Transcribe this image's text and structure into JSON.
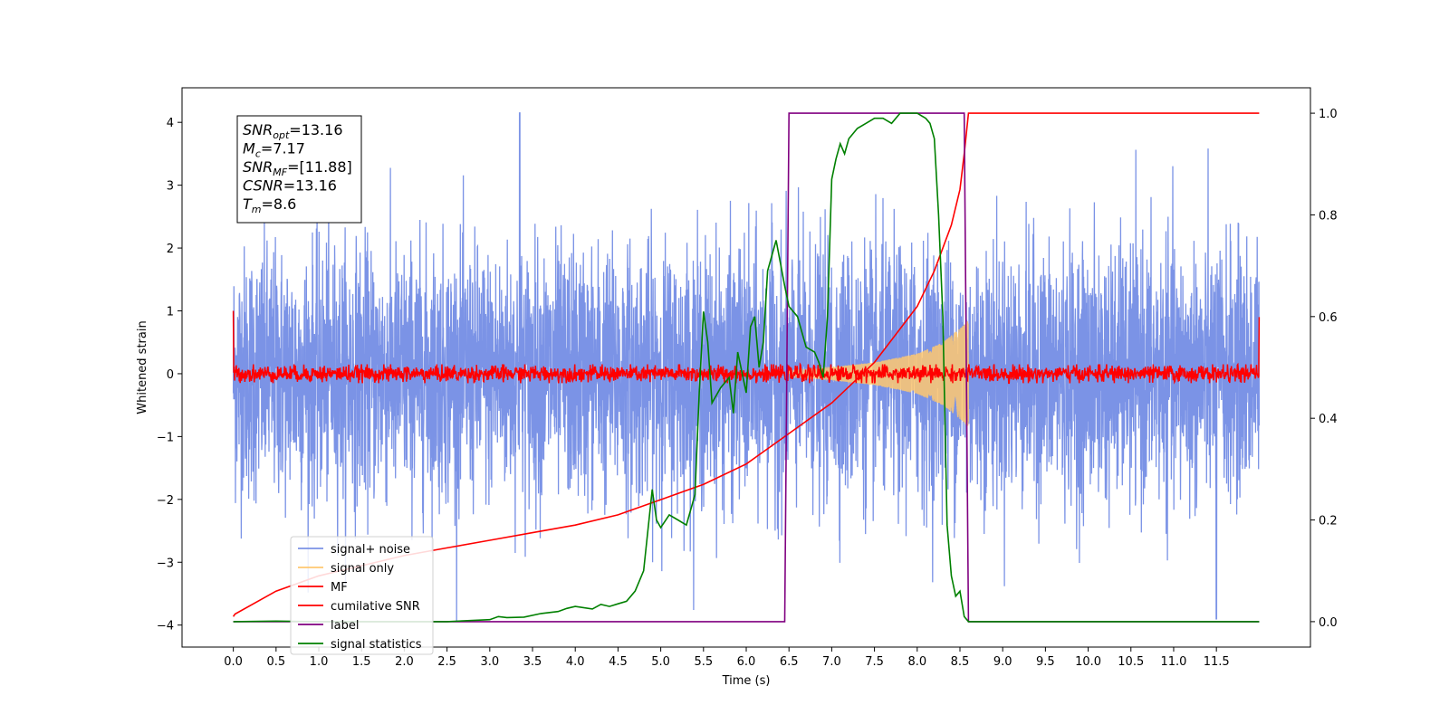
{
  "chart_data": {
    "type": "line",
    "xlabel": "Time (s)",
    "ylabel": "Whitened strain",
    "xlim": [
      -0.6,
      12.6
    ],
    "ylim": [
      -4.35,
      4.55
    ],
    "ylim_right": [
      -0.05,
      1.05
    ],
    "x_ticks": [
      "0.0",
      "0.5",
      "1.0",
      "1.5",
      "2.0",
      "2.5",
      "3.0",
      "3.5",
      "4.0",
      "4.5",
      "5.0",
      "5.5",
      "6.0",
      "6.5",
      "7.0",
      "7.5",
      "8.0",
      "8.5",
      "9.0",
      "9.5",
      "10.0",
      "10.5",
      "11.0",
      "11.5"
    ],
    "y_ticks": [
      "−4",
      "−3",
      "−2",
      "−1",
      "0",
      "1",
      "2",
      "3",
      "4"
    ],
    "y2_ticks": [
      "0.0",
      "0.2",
      "0.4",
      "0.6",
      "0.8",
      "1.0"
    ],
    "legend_position": "lower-left",
    "series": [
      {
        "name": "signal+ noise",
        "color": "#7b93e6",
        "axis": "left",
        "description": "whitened data, gaussian noise of std about 1 spanning 0 to 12 s, peak values near 4.15 at t=3.35 and about -3.9 at t=11.5",
        "x_range": [
          0,
          12
        ],
        "std": 1.0
      },
      {
        "name": "signal only",
        "color": "#ffc870",
        "axis": "left",
        "description": "chirp waveform whose envelope grows from near 0 at t=6.5 to about 0.85 at t=8.6, then drops to 0",
        "envelope": {
          "x": [
            6.5,
            7.0,
            7.5,
            8.0,
            8.3,
            8.5,
            8.6
          ],
          "y": [
            0.05,
            0.1,
            0.18,
            0.32,
            0.5,
            0.72,
            0.85
          ]
        }
      },
      {
        "name": "MF",
        "color": "#ff0000",
        "axis": "left",
        "description": "matched filter output, small noise around 0 with amplitude about 0.15, spikes to 1.0 at t=0 and 0.9 at t=12",
        "amplitude": 0.15,
        "start_value": 1.0,
        "end_value": 0.9
      },
      {
        "name": "cumilative SNR",
        "color": "#ff0000",
        "axis": "right",
        "x": [
          0.0,
          0.02,
          0.5,
          1.0,
          1.5,
          2.0,
          2.5,
          3.0,
          3.5,
          4.0,
          4.5,
          5.0,
          5.5,
          6.0,
          6.5,
          7.0,
          7.5,
          8.0,
          8.2,
          8.4,
          8.5,
          8.55,
          8.6,
          12.0
        ],
        "y": [
          0.01,
          0.015,
          0.06,
          0.09,
          0.11,
          0.13,
          0.145,
          0.16,
          0.175,
          0.19,
          0.21,
          0.24,
          0.27,
          0.31,
          0.37,
          0.43,
          0.51,
          0.62,
          0.69,
          0.78,
          0.85,
          0.92,
          1.0,
          1.0
        ]
      },
      {
        "name": "label",
        "color": "#800080",
        "axis": "right",
        "x": [
          0.0,
          6.45,
          6.5,
          8.55,
          8.6,
          12.0
        ],
        "y": [
          0.0,
          0.0,
          1.0,
          1.0,
          0.0,
          0.0
        ]
      },
      {
        "name": "signal statistics",
        "color": "#008000",
        "axis": "right",
        "x": [
          0.0,
          0.5,
          1.0,
          2.0,
          2.5,
          3.0,
          3.1,
          3.2,
          3.4,
          3.6,
          3.8,
          3.9,
          4.0,
          4.2,
          4.3,
          4.4,
          4.5,
          4.6,
          4.7,
          4.8,
          4.9,
          4.95,
          5.0,
          5.1,
          5.2,
          5.3,
          5.4,
          5.45,
          5.5,
          5.55,
          5.6,
          5.7,
          5.8,
          5.85,
          5.9,
          6.0,
          6.05,
          6.1,
          6.15,
          6.2,
          6.25,
          6.3,
          6.35,
          6.45,
          6.5,
          6.6,
          6.7,
          6.8,
          6.85,
          6.9,
          6.95,
          7.0,
          7.05,
          7.1,
          7.15,
          7.2,
          7.3,
          7.4,
          7.5,
          7.6,
          7.7,
          7.8,
          7.9,
          8.0,
          8.1,
          8.15,
          8.2,
          8.25,
          8.3,
          8.35,
          8.4,
          8.45,
          8.5,
          8.55,
          8.6,
          9.0,
          12.0
        ],
        "y": [
          0.0,
          0.001,
          0.0,
          0.0,
          0.0,
          0.004,
          0.01,
          0.008,
          0.009,
          0.016,
          0.02,
          0.026,
          0.03,
          0.025,
          0.034,
          0.03,
          0.035,
          0.04,
          0.06,
          0.1,
          0.26,
          0.2,
          0.185,
          0.21,
          0.2,
          0.19,
          0.25,
          0.45,
          0.61,
          0.55,
          0.43,
          0.46,
          0.48,
          0.41,
          0.53,
          0.45,
          0.58,
          0.6,
          0.5,
          0.55,
          0.69,
          0.72,
          0.75,
          0.66,
          0.62,
          0.6,
          0.54,
          0.53,
          0.51,
          0.48,
          0.6,
          0.87,
          0.91,
          0.94,
          0.92,
          0.95,
          0.97,
          0.98,
          0.99,
          0.99,
          0.98,
          1.0,
          1.0,
          1.0,
          0.99,
          0.98,
          0.95,
          0.8,
          0.6,
          0.19,
          0.09,
          0.05,
          0.06,
          0.01,
          0.0,
          0.0,
          0.0
        ]
      }
    ],
    "annotation": {
      "lines": [
        {
          "main": "SNR",
          "sub": "opt",
          "value": "=13.16"
        },
        {
          "main": "M",
          "sub": "c",
          "value": "=7.17"
        },
        {
          "main": "SNR",
          "sub": "MF",
          "value": "=[11.88]"
        },
        {
          "main": "CSNR",
          "sub": "",
          "value": "=13.16"
        },
        {
          "main": "T",
          "sub": "m",
          "value": "=8.6"
        }
      ]
    }
  }
}
